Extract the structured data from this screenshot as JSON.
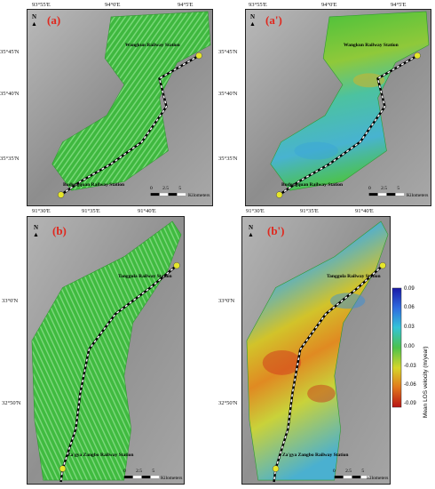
{
  "panels": {
    "a": {
      "label": "(a)",
      "top_coords": [
        "93°55'E",
        "94°0'E",
        "94°5'E"
      ],
      "left_coords": [
        "35°45'N",
        "35°40'N",
        "35°35'N"
      ],
      "stations": [
        "Wangkun Railway Station",
        "Budongquan Railway Station"
      ],
      "scale_ticks": [
        "0",
        "2.5",
        "5"
      ],
      "scale_unit": "Kilometers"
    },
    "a2": {
      "label": "(a')",
      "top_coords": [
        "93°55'E",
        "94°0'E",
        "94°5'E"
      ],
      "left_coords": [
        "35°45'N",
        "35°40'N",
        "35°35'N"
      ],
      "stations": [
        "Wangkun Railway Station",
        "Budongquan Railway Station"
      ],
      "scale_ticks": [
        "0",
        "2.5",
        "5"
      ],
      "scale_unit": "Kilometers"
    },
    "b": {
      "label": "(b)",
      "top_coords": [
        "91°30'E",
        "91°35'E",
        "91°40'E"
      ],
      "left_coords": [
        "33°0'N",
        "32°50'N"
      ],
      "stations": [
        "Tanggula Railway Station",
        "Za'gya Zangbo Railway Station"
      ],
      "scale_ticks": [
        "0",
        "2.5",
        "5"
      ],
      "scale_unit": "Kilometers"
    },
    "b2": {
      "label": "(b')",
      "top_coords": [
        "91°30'E",
        "91°35'E",
        "91°40'E"
      ],
      "left_coords": [
        "33°0'N",
        "32°50'N"
      ],
      "stations": [
        "Tanggula Railway Station",
        "Za'gya Zangbo Railway Station"
      ],
      "scale_ticks": [
        "0",
        "2.5",
        "5"
      ],
      "scale_unit": "Kilometers"
    }
  },
  "north_label": "N",
  "legend": {
    "title": "Mean LOS velocity (m/year)",
    "ticks": [
      "0.09",
      "0.06",
      "0.03",
      "0.00",
      "-0.03",
      "-0.06",
      "-0.09"
    ],
    "colors": [
      "#1a1aa8",
      "#2f6de0",
      "#33c3d8",
      "#4cc24c",
      "#d6d629",
      "#e27a1c",
      "#b81414"
    ]
  }
}
